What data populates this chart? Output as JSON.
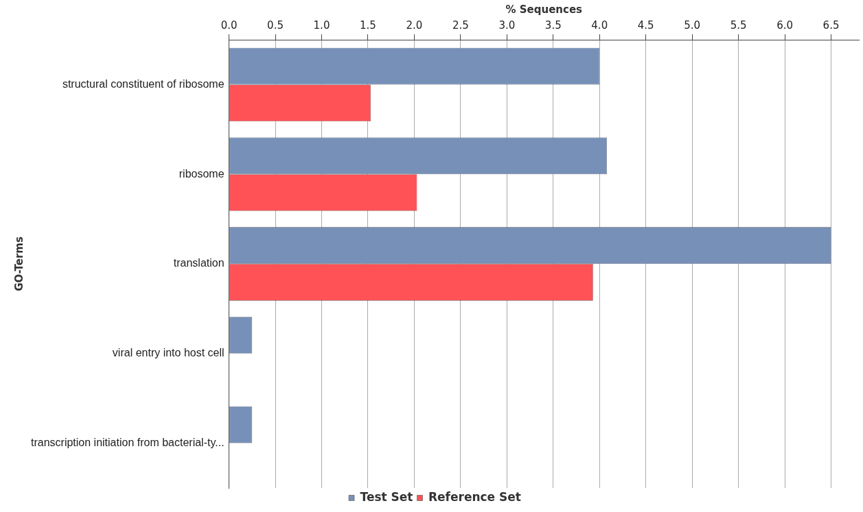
{
  "chart_data": {
    "type": "bar",
    "orientation": "horizontal",
    "xlabel": "% Sequences",
    "ylabel": "GO-Terms",
    "categories": [
      "structural constituent of ribosome",
      "ribosome",
      "translation",
      "viral entry into host cell",
      "transcription initiation from bacterial-ty..."
    ],
    "series": [
      {
        "name": "Test Set",
        "color": "#7790b8",
        "values": [
          4.0,
          4.08,
          6.5,
          0.25,
          0.25
        ]
      },
      {
        "name": "Reference Set",
        "color": "#fe5257",
        "values": [
          1.53,
          2.03,
          3.93,
          0,
          0
        ]
      }
    ],
    "xlim": [
      0,
      6.8
    ],
    "xticks": [
      {
        "value": 0,
        "label": "0.0"
      },
      0.5,
      {
        "value": 1,
        "label": "1.0"
      },
      1.5,
      {
        "value": 2,
        "label": "2.0"
      },
      2.5,
      {
        "value": 3,
        "label": "3.0"
      },
      3.5,
      {
        "value": 4,
        "label": "4.0"
      },
      4.5,
      {
        "value": 5,
        "label": "5.0"
      },
      5.5,
      {
        "value": 6,
        "label": "6.0"
      },
      6.5
    ],
    "grid": "x",
    "legend": "bottom"
  }
}
